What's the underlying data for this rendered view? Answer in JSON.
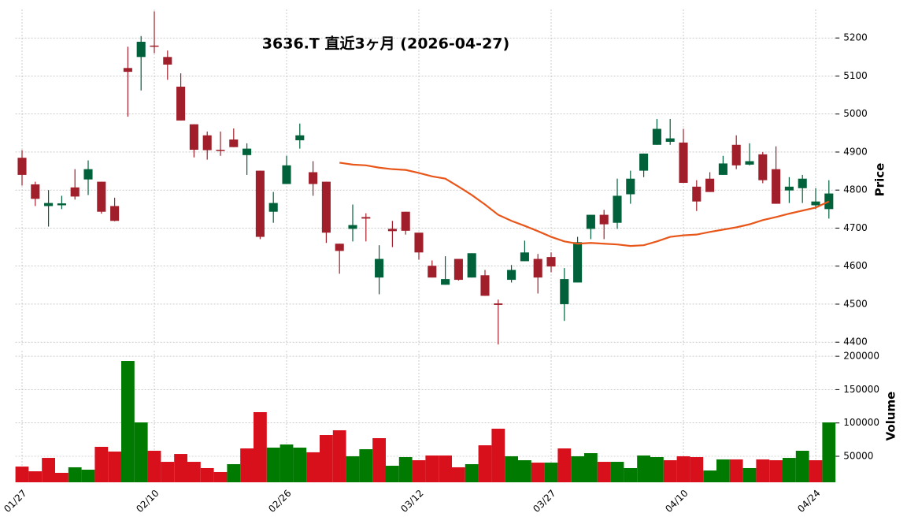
{
  "chart_data": {
    "type": "candlestick",
    "title": "3636.T  直近3ヶ月  (2026-04-27)",
    "categories": [
      "01/27",
      null,
      null,
      null,
      null,
      null,
      null,
      null,
      null,
      null,
      "02/10",
      null,
      null,
      null,
      null,
      null,
      null,
      null,
      null,
      null,
      "02/26",
      null,
      null,
      null,
      null,
      null,
      null,
      null,
      null,
      null,
      "03/12",
      null,
      null,
      null,
      null,
      null,
      null,
      null,
      null,
      null,
      "03/27",
      null,
      null,
      null,
      null,
      null,
      null,
      null,
      null,
      null,
      "04/10",
      null,
      null,
      null,
      null,
      null,
      null,
      null,
      null,
      null,
      "04/24",
      null
    ],
    "open": [
      4885,
      4815,
      4758,
      4760,
      4807,
      4828,
      4822,
      4758,
      5121,
      5150,
      5180,
      5150,
      5072,
      4973,
      4944,
      4906,
      4933,
      4892,
      4851,
      4743,
      4816,
      4931,
      4847,
      4822,
      4659,
      4698,
      4729,
      4570,
      4698,
      4743,
      4688,
      4601,
      4551,
      4619,
      4570,
      4576,
      4502,
      4564,
      4613,
      4619,
      4624,
      4500,
      4557,
      4698,
      4735,
      4714,
      4789,
      4851,
      4919,
      4927,
      4925,
      4809,
      4830,
      4840,
      4919,
      4867,
      4894,
      4855,
      4799,
      4805,
      4760,
      4750
    ],
    "high": [
      4905,
      4822,
      4800,
      4785,
      4855,
      4878,
      4822,
      4780,
      5177,
      5205,
      5270,
      5167,
      5107,
      4973,
      4954,
      4954,
      4962,
      4923,
      4851,
      4795,
      4890,
      4975,
      4876,
      4822,
      4659,
      4762,
      4739,
      4655,
      4719,
      4743,
      4688,
      4615,
      4626,
      4619,
      4634,
      4590,
      4512,
      4603,
      4667,
      4632,
      4636,
      4595,
      4677,
      4735,
      4748,
      4830,
      4851,
      4896,
      4987,
      4987,
      4961,
      4826,
      4847,
      4890,
      4944,
      4923,
      4900,
      4915,
      4834,
      4840,
      4805,
      4826
    ],
    "low": [
      4812,
      4758,
      4704,
      4750,
      4775,
      4787,
      4738,
      4718,
      4993,
      5062,
      5160,
      5090,
      4983,
      4886,
      4880,
      4890,
      4913,
      4840,
      4671,
      4714,
      4816,
      4909,
      4785,
      4661,
      4580,
      4665,
      4665,
      4526,
      4650,
      4683,
      4617,
      4570,
      4551,
      4562,
      4570,
      4522,
      4394,
      4557,
      4613,
      4528,
      4584,
      4456,
      4557,
      4671,
      4671,
      4698,
      4764,
      4834,
      4919,
      4919,
      4819,
      4745,
      4795,
      4840,
      4855,
      4865,
      4818,
      4764,
      4766,
      4766,
      4750,
      4725
    ],
    "close": [
      4840,
      4777,
      4766,
      4765,
      4783,
      4855,
      4743,
      4719,
      5111,
      5190,
      5178,
      5130,
      4983,
      4906,
      4905,
      4904,
      4913,
      4909,
      4677,
      4766,
      4865,
      4944,
      4816,
      4688,
      4640,
      4708,
      4725,
      4619,
      4692,
      4693,
      4636,
      4570,
      4566,
      4564,
      4634,
      4522,
      4498,
      4590,
      4636,
      4570,
      4599,
      4566,
      4663,
      4735,
      4710,
      4785,
      4830,
      4896,
      4961,
      4936,
      4819,
      4770,
      4795,
      4870,
      4865,
      4876,
      4826,
      4764,
      4809,
      4830,
      4770,
      4791
    ],
    "volume": [
      34600,
      27500,
      47600,
      25200,
      33500,
      29900,
      64200,
      57100,
      193000,
      100800,
      58300,
      41700,
      53500,
      41700,
      32300,
      26400,
      38200,
      61800,
      116200,
      63000,
      67700,
      63000,
      56000,
      81900,
      89000,
      50000,
      60600,
      77200,
      35800,
      48800,
      44100,
      51200,
      51200,
      33500,
      38200,
      66500,
      91400,
      50000,
      44100,
      40500,
      40500,
      61800,
      50000,
      54700,
      41700,
      41700,
      32300,
      51200,
      48800,
      44100,
      50000,
      48800,
      28700,
      45300,
      45300,
      32300,
      45300,
      44100,
      47600,
      58300,
      44100,
      100800
    ],
    "ma": [
      null,
      null,
      null,
      null,
      null,
      null,
      null,
      null,
      null,
      null,
      null,
      null,
      null,
      null,
      null,
      null,
      null,
      null,
      null,
      null,
      null,
      null,
      null,
      null,
      4872,
      4867,
      4865,
      4859,
      4855,
      4853,
      4845,
      4836,
      4830,
      4809,
      4787,
      4762,
      4735,
      4719,
      4706,
      4692,
      4677,
      4665,
      4659,
      4661,
      4659,
      4657,
      4653,
      4655,
      4665,
      4677,
      4681,
      4683,
      4690,
      4696,
      4702,
      4710,
      4721,
      4729,
      4738,
      4746,
      4754,
      4770
    ],
    "ylabel": "Price",
    "y2label": "Volume",
    "ylim": [
      4388,
      5275
    ],
    "yticks": [
      4400,
      4500,
      4600,
      4700,
      4800,
      4900,
      5000,
      5100,
      5200
    ],
    "y2lim": [
      11000,
      208400
    ],
    "y2ticks": [
      50000,
      100000,
      150000,
      200000
    ],
    "up_color": "#00613a",
    "down_color": "#a01f2a",
    "volume_up_color": "#007a00",
    "volume_down_color": "#d8101c",
    "ma_color": "#e8561a",
    "grid": true
  }
}
